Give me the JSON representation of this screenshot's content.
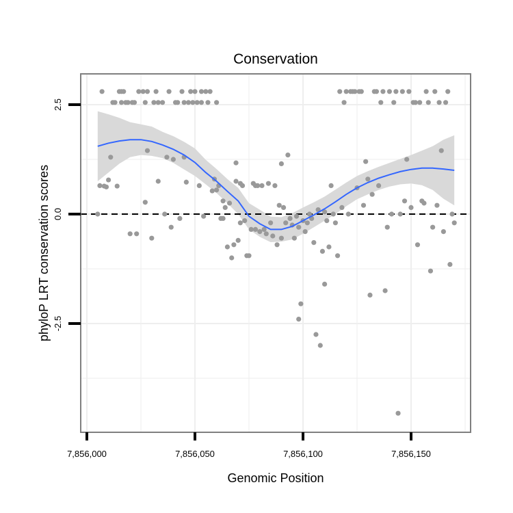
{
  "chart_data": {
    "type": "scatter",
    "title": "Conservation",
    "xlabel": "Genomic Position",
    "ylabel": "phyloP LRT conservation scores",
    "xlim": [
      7856000,
      7856175
    ],
    "ylim": [
      -5.0,
      3.2
    ],
    "x_ticks": [
      7856000,
      7856050,
      7856100,
      7856150
    ],
    "x_tick_labels": [
      "7,856,000",
      "7,856,050",
      "7,856,100",
      "7,856,150"
    ],
    "y_ticks": [
      -2.5,
      0.0,
      2.5
    ],
    "y_tick_labels": [
      "-2.5",
      "0.0",
      "2.5"
    ],
    "minor_x_grid": [
      7856025,
      7856075,
      7856125,
      7856175
    ],
    "minor_y_grid": [
      -3.75,
      -1.25,
      1.25
    ],
    "grid": true,
    "reference_line": {
      "y": 0.0,
      "style": "dashed",
      "color": "#000000"
    },
    "colors": {
      "points": "#999999",
      "smooth_line": "#3366ff",
      "ribbon": "#d9d9d9",
      "panel_border": "#7f7f7f",
      "grid": "#eeeeee"
    },
    "points": [
      {
        "x": 7856005,
        "y": 0.0
      },
      {
        "x": 7856006,
        "y": 0.65
      },
      {
        "x": 7856007,
        "y": 2.8
      },
      {
        "x": 7856008,
        "y": 0.64
      },
      {
        "x": 7856009,
        "y": 0.62
      },
      {
        "x": 7856010,
        "y": 0.78
      },
      {
        "x": 7856011,
        "y": 1.3
      },
      {
        "x": 7856012,
        "y": 2.55
      },
      {
        "x": 7856013,
        "y": 2.55
      },
      {
        "x": 7856014,
        "y": 0.64
      },
      {
        "x": 7856015,
        "y": 2.8
      },
      {
        "x": 7856016,
        "y": 2.8
      },
      {
        "x": 7856016,
        "y": 2.55
      },
      {
        "x": 7856017,
        "y": 2.8
      },
      {
        "x": 7856018,
        "y": 2.55
      },
      {
        "x": 7856019,
        "y": 2.55
      },
      {
        "x": 7856020,
        "y": -0.45
      },
      {
        "x": 7856021,
        "y": 2.55
      },
      {
        "x": 7856022,
        "y": 2.55
      },
      {
        "x": 7856023,
        "y": -0.45
      },
      {
        "x": 7856024,
        "y": 2.8
      },
      {
        "x": 7856026,
        "y": 2.8
      },
      {
        "x": 7856027,
        "y": 0.27
      },
      {
        "x": 7856027,
        "y": 2.55
      },
      {
        "x": 7856028,
        "y": 1.45
      },
      {
        "x": 7856028,
        "y": 2.8
      },
      {
        "x": 7856030,
        "y": -0.55
      },
      {
        "x": 7856031,
        "y": 2.55
      },
      {
        "x": 7856032,
        "y": 2.8
      },
      {
        "x": 7856033,
        "y": 0.75
      },
      {
        "x": 7856033,
        "y": 2.55
      },
      {
        "x": 7856035,
        "y": 2.55
      },
      {
        "x": 7856036,
        "y": 0.0
      },
      {
        "x": 7856037,
        "y": 1.3
      },
      {
        "x": 7856038,
        "y": 2.8
      },
      {
        "x": 7856039,
        "y": -0.3
      },
      {
        "x": 7856040,
        "y": 1.25
      },
      {
        "x": 7856041,
        "y": 2.55
      },
      {
        "x": 7856042,
        "y": 2.55
      },
      {
        "x": 7856043,
        "y": -0.1
      },
      {
        "x": 7856044,
        "y": 2.8
      },
      {
        "x": 7856045,
        "y": 1.3
      },
      {
        "x": 7856045,
        "y": 2.55
      },
      {
        "x": 7856046,
        "y": 0.73
      },
      {
        "x": 7856047,
        "y": 2.55
      },
      {
        "x": 7856048,
        "y": 2.8
      },
      {
        "x": 7856049,
        "y": 2.55
      },
      {
        "x": 7856050,
        "y": 2.8
      },
      {
        "x": 7856051,
        "y": 2.55
      },
      {
        "x": 7856052,
        "y": 0.65
      },
      {
        "x": 7856053,
        "y": 2.55
      },
      {
        "x": 7856053,
        "y": 2.8
      },
      {
        "x": 7856054,
        "y": -0.05
      },
      {
        "x": 7856055,
        "y": 2.8
      },
      {
        "x": 7856056,
        "y": 2.55
      },
      {
        "x": 7856057,
        "y": 2.8
      },
      {
        "x": 7856058,
        "y": 0.53
      },
      {
        "x": 7856059,
        "y": 0.8
      },
      {
        "x": 7856060,
        "y": 0.55
      },
      {
        "x": 7856060,
        "y": 2.55
      },
      {
        "x": 7856061,
        "y": 0.65
      },
      {
        "x": 7856062,
        "y": -0.1
      },
      {
        "x": 7856063,
        "y": 0.3
      },
      {
        "x": 7856063,
        "y": -0.1
      },
      {
        "x": 7856064,
        "y": 0.15
      },
      {
        "x": 7856065,
        "y": -0.75
      },
      {
        "x": 7856066,
        "y": 0.25
      },
      {
        "x": 7856067,
        "y": -1.0
      },
      {
        "x": 7856068,
        "y": -0.7
      },
      {
        "x": 7856069,
        "y": 0.75
      },
      {
        "x": 7856069,
        "y": 1.17
      },
      {
        "x": 7856070,
        "y": -0.6
      },
      {
        "x": 7856071,
        "y": 0.7
      },
      {
        "x": 7856071,
        "y": -0.2
      },
      {
        "x": 7856072,
        "y": 0.65
      },
      {
        "x": 7856073,
        "y": -0.15
      },
      {
        "x": 7856074,
        "y": -0.95
      },
      {
        "x": 7856075,
        "y": -0.95
      },
      {
        "x": 7856076,
        "y": -0.35
      },
      {
        "x": 7856077,
        "y": 0.7
      },
      {
        "x": 7856078,
        "y": 0.65
      },
      {
        "x": 7856078,
        "y": -0.35
      },
      {
        "x": 7856079,
        "y": 0.65
      },
      {
        "x": 7856080,
        "y": -0.4
      },
      {
        "x": 7856081,
        "y": 0.65
      },
      {
        "x": 7856082,
        "y": -0.35
      },
      {
        "x": 7856083,
        "y": -0.45
      },
      {
        "x": 7856084,
        "y": 0.7
      },
      {
        "x": 7856085,
        "y": -0.2
      },
      {
        "x": 7856086,
        "y": -0.5
      },
      {
        "x": 7856087,
        "y": 0.65
      },
      {
        "x": 7856088,
        "y": -0.7
      },
      {
        "x": 7856089,
        "y": 0.2
      },
      {
        "x": 7856090,
        "y": 1.15
      },
      {
        "x": 7856090,
        "y": -0.55
      },
      {
        "x": 7856091,
        "y": 0.15
      },
      {
        "x": 7856092,
        "y": -0.2
      },
      {
        "x": 7856093,
        "y": 1.35
      },
      {
        "x": 7856094,
        "y": -0.1
      },
      {
        "x": 7856095,
        "y": -0.25
      },
      {
        "x": 7856096,
        "y": -0.55
      },
      {
        "x": 7856097,
        "y": -0.05
      },
      {
        "x": 7856098,
        "y": -2.4
      },
      {
        "x": 7856098,
        "y": -0.3
      },
      {
        "x": 7856099,
        "y": -2.05
      },
      {
        "x": 7856100,
        "y": -0.15
      },
      {
        "x": 7856101,
        "y": -0.4
      },
      {
        "x": 7856102,
        "y": -0.2
      },
      {
        "x": 7856103,
        "y": 0.0
      },
      {
        "x": 7856104,
        "y": -0.1
      },
      {
        "x": 7856105,
        "y": -0.65
      },
      {
        "x": 7856106,
        "y": -2.75
      },
      {
        "x": 7856107,
        "y": 0.1
      },
      {
        "x": 7856108,
        "y": -3.0
      },
      {
        "x": 7856109,
        "y": -0.85
      },
      {
        "x": 7856110,
        "y": -1.6
      },
      {
        "x": 7856110,
        "y": 0.05
      },
      {
        "x": 7856111,
        "y": -0.15
      },
      {
        "x": 7856112,
        "y": -0.75
      },
      {
        "x": 7856113,
        "y": 0.65
      },
      {
        "x": 7856114,
        "y": 0.0
      },
      {
        "x": 7856115,
        "y": -0.2
      },
      {
        "x": 7856116,
        "y": -0.95
      },
      {
        "x": 7856117,
        "y": 2.8
      },
      {
        "x": 7856118,
        "y": 0.15
      },
      {
        "x": 7856119,
        "y": 2.55
      },
      {
        "x": 7856120,
        "y": 2.8
      },
      {
        "x": 7856121,
        "y": 0.0
      },
      {
        "x": 7856122,
        "y": 2.8
      },
      {
        "x": 7856123,
        "y": 2.8
      },
      {
        "x": 7856124,
        "y": 2.8
      },
      {
        "x": 7856125,
        "y": 0.6
      },
      {
        "x": 7856126,
        "y": 2.8
      },
      {
        "x": 7856127,
        "y": 2.8
      },
      {
        "x": 7856128,
        "y": 0.2
      },
      {
        "x": 7856129,
        "y": 1.2
      },
      {
        "x": 7856130,
        "y": 0.8
      },
      {
        "x": 7856131,
        "y": -1.85
      },
      {
        "x": 7856132,
        "y": 0.45
      },
      {
        "x": 7856133,
        "y": 2.8
      },
      {
        "x": 7856134,
        "y": 2.8
      },
      {
        "x": 7856135,
        "y": 0.65
      },
      {
        "x": 7856136,
        "y": 2.55
      },
      {
        "x": 7856137,
        "y": 2.8
      },
      {
        "x": 7856138,
        "y": -1.75
      },
      {
        "x": 7856139,
        "y": -0.3
      },
      {
        "x": 7856140,
        "y": 2.8
      },
      {
        "x": 7856141,
        "y": 0.0
      },
      {
        "x": 7856142,
        "y": 2.55
      },
      {
        "x": 7856143,
        "y": 2.8
      },
      {
        "x": 7856144,
        "y": -4.55
      },
      {
        "x": 7856145,
        "y": 0.0
      },
      {
        "x": 7856146,
        "y": 2.8
      },
      {
        "x": 7856147,
        "y": 0.3
      },
      {
        "x": 7856148,
        "y": 1.25
      },
      {
        "x": 7856149,
        "y": 2.8
      },
      {
        "x": 7856150,
        "y": 0.15
      },
      {
        "x": 7856151,
        "y": 2.55
      },
      {
        "x": 7856152,
        "y": 2.55
      },
      {
        "x": 7856153,
        "y": -0.7
      },
      {
        "x": 7856154,
        "y": 2.55
      },
      {
        "x": 7856155,
        "y": 0.3
      },
      {
        "x": 7856156,
        "y": 0.25
      },
      {
        "x": 7856157,
        "y": 2.8
      },
      {
        "x": 7856158,
        "y": 2.55
      },
      {
        "x": 7856159,
        "y": -1.3
      },
      {
        "x": 7856160,
        "y": -0.3
      },
      {
        "x": 7856161,
        "y": 2.8
      },
      {
        "x": 7856162,
        "y": 0.2
      },
      {
        "x": 7856163,
        "y": 2.55
      },
      {
        "x": 7856164,
        "y": 1.45
      },
      {
        "x": 7856165,
        "y": -0.4
      },
      {
        "x": 7856166,
        "y": 2.55
      },
      {
        "x": 7856167,
        "y": 2.8
      },
      {
        "x": 7856168,
        "y": -1.15
      },
      {
        "x": 7856169,
        "y": 0.0
      },
      {
        "x": 7856170,
        "y": -0.2
      }
    ],
    "smooth": {
      "x": [
        7856005,
        7856010,
        7856015,
        7856020,
        7856025,
        7856030,
        7856035,
        7856040,
        7856045,
        7856050,
        7856055,
        7856060,
        7856065,
        7856070,
        7856075,
        7856080,
        7856085,
        7856090,
        7856095,
        7856100,
        7856105,
        7856110,
        7856115,
        7856120,
        7856125,
        7856130,
        7856135,
        7856140,
        7856145,
        7856150,
        7856155,
        7856160,
        7856165,
        7856170
      ],
      "y": [
        1.55,
        1.62,
        1.67,
        1.7,
        1.7,
        1.66,
        1.58,
        1.48,
        1.35,
        1.18,
        0.95,
        0.75,
        0.52,
        0.3,
        -0.05,
        -0.22,
        -0.35,
        -0.35,
        -0.28,
        -0.15,
        -0.02,
        0.12,
        0.28,
        0.45,
        0.6,
        0.72,
        0.82,
        0.9,
        0.97,
        1.02,
        1.05,
        1.05,
        1.03,
        1.0
      ],
      "lo": [
        0.75,
        0.95,
        1.15,
        1.3,
        1.35,
        1.33,
        1.28,
        1.17,
        1.02,
        0.87,
        0.68,
        0.48,
        0.25,
        0.0,
        -0.35,
        -0.52,
        -0.64,
        -0.63,
        -0.58,
        -0.45,
        -0.3,
        -0.15,
        0.0,
        0.18,
        0.34,
        0.45,
        0.55,
        0.63,
        0.68,
        0.7,
        0.66,
        0.55,
        0.35,
        0.2
      ],
      "hi": [
        2.35,
        2.28,
        2.2,
        2.1,
        2.05,
        2.0,
        1.88,
        1.78,
        1.65,
        1.5,
        1.24,
        1.03,
        0.8,
        0.6,
        0.25,
        0.1,
        -0.06,
        -0.07,
        0.02,
        0.15,
        0.27,
        0.4,
        0.56,
        0.72,
        0.87,
        0.98,
        1.08,
        1.17,
        1.26,
        1.35,
        1.45,
        1.55,
        1.7,
        1.8
      ]
    }
  }
}
